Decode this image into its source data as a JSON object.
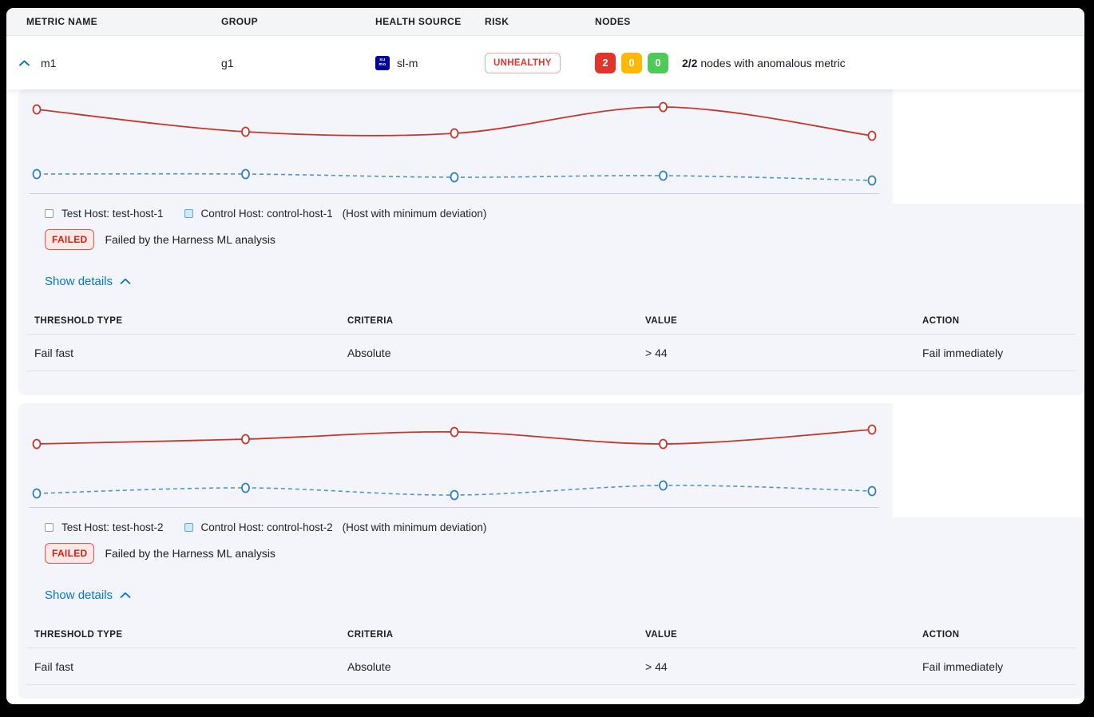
{
  "columns": {
    "metric_name": "METRIC NAME",
    "group": "GROUP",
    "health_source": "HEALTH SOURCE",
    "risk": "RISK",
    "nodes": "NODES"
  },
  "metric_row": {
    "name": "m1",
    "group": "g1",
    "health_source": "sl-m",
    "health_source_icon": "sumo-logic-icon",
    "health_source_icon_text_top": "su",
    "health_source_icon_text_bottom": "mo",
    "risk_badge": "UNHEALTHY",
    "node_counts": {
      "unhealthy": "2",
      "warning": "0",
      "healthy": "0"
    },
    "nodes_summary_bold": "2/2",
    "nodes_summary": "nodes with anomalous metric",
    "colors": {
      "unhealthy_chip": "#e3342c",
      "warning_chip": "#fcb902",
      "healthy_chip": "#4eca59",
      "risk_text": "#e0352c",
      "link_blue": "#0278d5"
    }
  },
  "cards": [
    {
      "legend": {
        "test_label": "Test Host: test-host-1",
        "control_label": "Control Host: control-host-1",
        "note": "(Host with minimum deviation)"
      },
      "status": {
        "badge": "FAILED",
        "message": "Failed by the Harness ML analysis"
      },
      "details_toggle": "Show details",
      "table": {
        "headers": [
          "THRESHOLD TYPE",
          "CRITERIA",
          "VALUE",
          "ACTION"
        ],
        "rows": [
          [
            "Fail fast",
            "Absolute",
            "> 44",
            "Fail immediately"
          ]
        ]
      }
    },
    {
      "legend": {
        "test_label": "Test Host: test-host-2",
        "control_label": "Control Host: control-host-2",
        "note": "(Host with minimum deviation)"
      },
      "status": {
        "badge": "FAILED",
        "message": "Failed by the Harness ML analysis"
      },
      "details_toggle": "Show details",
      "table": {
        "headers": [
          "THRESHOLD TYPE",
          "CRITERIA",
          "VALUE",
          "ACTION"
        ],
        "rows": [
          [
            "Fail fast",
            "Absolute",
            "> 44",
            "Fail immediately"
          ]
        ]
      }
    }
  ],
  "chart_data": [
    {
      "type": "line",
      "title": "",
      "x": [
        0,
        1,
        2,
        3,
        4
      ],
      "series": [
        {
          "name": "Test Host: test-host-1",
          "style": "solid",
          "color": "#c9352c",
          "marker": "#c9352c",
          "values": [
            105,
            77,
            75,
            108,
            72
          ]
        },
        {
          "name": "Control Host: control-host-1",
          "style": "dashed",
          "color": "#4d94d4",
          "marker": "#2e7fc6",
          "values": [
            24,
            24,
            20,
            22,
            16
          ]
        }
      ],
      "xlabel": "",
      "ylabel": "",
      "ylim": [
        0,
        143
      ],
      "grid": false,
      "legend_position": "bottom",
      "note": "no axis tick labels visible; values are relative units above baseline"
    },
    {
      "type": "line",
      "title": "",
      "x": [
        0,
        1,
        2,
        3,
        4
      ],
      "series": [
        {
          "name": "Test Host: test-host-2",
          "style": "solid",
          "color": "#c9352c",
          "marker": "#c9352c",
          "values": [
            79,
            85,
            94,
            79,
            97
          ]
        },
        {
          "name": "Control Host: control-host-2",
          "style": "dashed",
          "color": "#4d94d4",
          "marker": "#2e7fc6",
          "values": [
            17,
            24,
            15,
            27,
            20
          ]
        }
      ],
      "xlabel": "",
      "ylabel": "",
      "ylim": [
        0,
        143
      ],
      "grid": false,
      "legend_position": "bottom",
      "note": "no axis tick labels visible; values are relative units above baseline"
    }
  ]
}
